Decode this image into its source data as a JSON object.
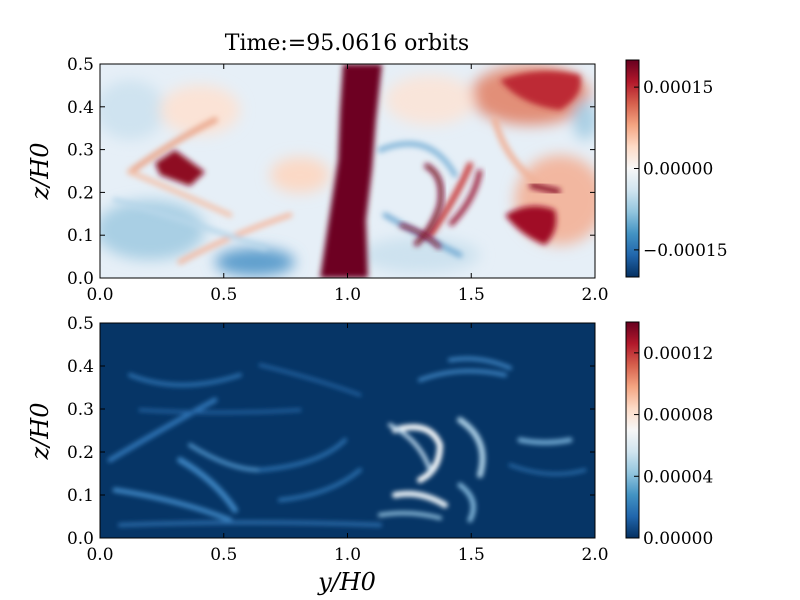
{
  "figure": {
    "title": "Time:=95.0616 orbits"
  },
  "chart_data": [
    {
      "type": "heatmap",
      "title": "Time:=95.0616 orbits",
      "xlabel": "",
      "ylabel": "z/H0",
      "xlim": [
        0.0,
        2.0
      ],
      "ylim": [
        0.0,
        0.5
      ],
      "xticks": [
        "0.0",
        "0.5",
        "1.0",
        "1.5",
        "2.0"
      ],
      "yticks": [
        "0.0",
        "0.1",
        "0.2",
        "0.3",
        "0.4",
        "0.5"
      ],
      "colormap": "RdBu_r",
      "clim": [
        -0.0002,
        0.0002
      ],
      "colorbar_ticks": [
        "−0.00015",
        "0.00000",
        "0.00015"
      ],
      "colorbar_tick_values": [
        -0.00015,
        0.0,
        0.00015
      ],
      "features": [
        {
          "y": 1.0,
          "z_from": 0.0,
          "z_to": 0.5,
          "value": 0.0002
        },
        {
          "y": 0.28,
          "z": 0.26,
          "value": 0.00018
        },
        {
          "y": 1.35,
          "z": 0.22,
          "value": 0.00015
        },
        {
          "y": 1.75,
          "z": 0.13,
          "value": 0.00016
        },
        {
          "y": 1.7,
          "z": 0.42,
          "value": 0.00012
        },
        {
          "y": 0.65,
          "z": 0.02,
          "value": -0.0001
        },
        {
          "y": 1.25,
          "z": 0.12,
          "value": -9e-05
        }
      ]
    },
    {
      "type": "heatmap",
      "title": "",
      "xlabel": "y/H0",
      "ylabel": "z/H0",
      "xlim": [
        0.0,
        2.0
      ],
      "ylim": [
        0.0,
        0.5
      ],
      "xticks": [
        "0.0",
        "0.5",
        "1.0",
        "1.5",
        "2.0"
      ],
      "yticks": [
        "0.0",
        "0.1",
        "0.2",
        "0.3",
        "0.4",
        "0.5"
      ],
      "colormap": "RdBu_r",
      "clim": [
        0.0,
        0.00014
      ],
      "colorbar_ticks": [
        "0.00000",
        "0.00004",
        "0.00008",
        "0.00012"
      ],
      "colorbar_tick_values": [
        0.0,
        4e-05,
        8e-05,
        0.00012
      ],
      "features": [
        {
          "y": 1.35,
          "z": 0.22,
          "value": 8e-05
        },
        {
          "y": 1.3,
          "z": 0.1,
          "value": 7e-05
        },
        {
          "y": 1.5,
          "z": 0.18,
          "value": 6e-05
        },
        {
          "y": 0.45,
          "z": 0.16,
          "value": 4e-05
        },
        {
          "y": 0.9,
          "z": 0.1,
          "value": 3e-05
        },
        {
          "y": 0.4,
          "z": 0.4,
          "value": 3e-05
        }
      ]
    }
  ]
}
